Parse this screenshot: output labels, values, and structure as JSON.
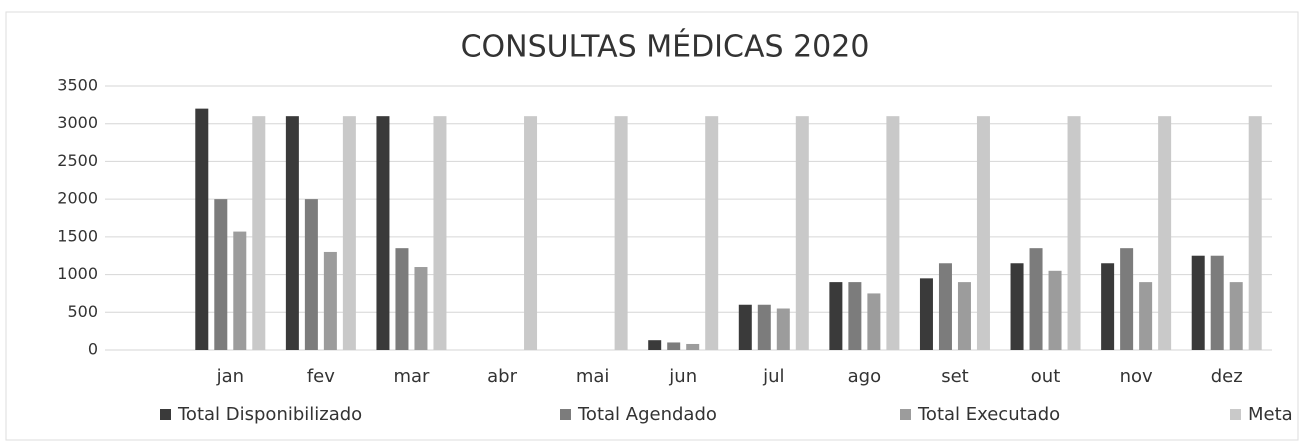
{
  "chart_data": {
    "type": "bar",
    "title": "CONSULTAS MÉDICAS 2020",
    "categories": [
      "jan",
      "fev",
      "mar",
      "abr",
      "mai",
      "jun",
      "jul",
      "ago",
      "set",
      "out",
      "nov",
      "dez"
    ],
    "series": [
      {
        "name": "Total Disponibilizado",
        "color": "#3a3a3a",
        "values": [
          3200,
          3100,
          3100,
          0,
          0,
          130,
          600,
          900,
          950,
          1150,
          1150,
          1250
        ]
      },
      {
        "name": "Total Agendado",
        "color": "#7c7c7c",
        "values": [
          2000,
          2000,
          1350,
          0,
          0,
          100,
          600,
          900,
          1150,
          1350,
          1350,
          1250
        ]
      },
      {
        "name": "Total Executado",
        "color": "#9c9c9c",
        "values": [
          1570,
          1300,
          1100,
          0,
          0,
          80,
          550,
          750,
          900,
          1050,
          900,
          900
        ]
      },
      {
        "name": "Meta",
        "color": "#c9c9c9",
        "values": [
          3100,
          3100,
          3100,
          3100,
          3100,
          3100,
          3100,
          3100,
          3100,
          3100,
          3100,
          3100
        ]
      }
    ],
    "ylim": [
      0,
      3500
    ],
    "yticks": [
      0,
      500,
      1000,
      1500,
      2000,
      2500,
      3000,
      3500
    ],
    "grid": true,
    "legend": "bottom"
  }
}
